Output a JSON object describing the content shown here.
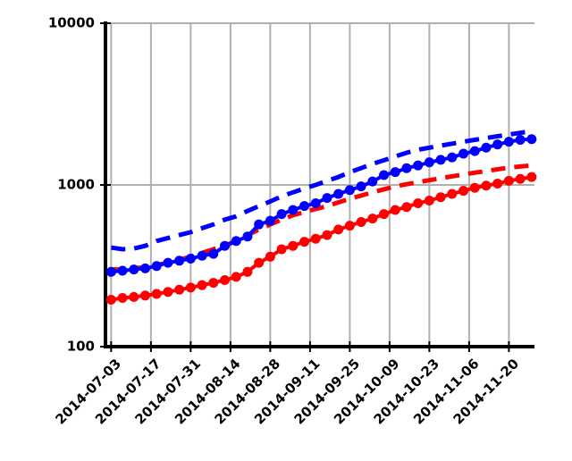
{
  "chart_data": {
    "type": "line",
    "log_scale_y": true,
    "grid": true,
    "x": [
      "2014-07-03",
      "2014-07-07",
      "2014-07-11",
      "2014-07-15",
      "2014-07-19",
      "2014-07-23",
      "2014-07-27",
      "2014-07-31",
      "2014-08-04",
      "2014-08-08",
      "2014-08-12",
      "2014-08-16",
      "2014-08-20",
      "2014-08-24",
      "2014-08-28",
      "2014-09-01",
      "2014-09-05",
      "2014-09-09",
      "2014-09-13",
      "2014-09-17",
      "2014-09-21",
      "2014-09-25",
      "2014-09-29",
      "2014-10-03",
      "2014-10-07",
      "2014-10-11",
      "2014-10-15",
      "2014-10-19",
      "2014-10-23",
      "2014-10-27",
      "2014-10-31",
      "2014-11-04",
      "2014-11-08",
      "2014-11-12",
      "2014-11-16",
      "2014-11-20",
      "2014-11-24",
      "2014-11-28"
    ],
    "series": [
      {
        "color": "#ff0000",
        "dashed": true,
        "markers": false,
        "values": [
          300,
          300,
          305,
          310,
          320,
          330,
          345,
          360,
          380,
          400,
          420,
          450,
          490,
          530,
          570,
          610,
          650,
          680,
          710,
          740,
          780,
          820,
          860,
          900,
          940,
          980,
          1010,
          1040,
          1070,
          1100,
          1130,
          1160,
          1190,
          1220,
          1250,
          1280,
          1300,
          1320
        ]
      },
      {
        "color": "#0000ff",
        "dashed": true,
        "markers": false,
        "values": [
          410,
          400,
          405,
          420,
          450,
          470,
          490,
          510,
          540,
          570,
          610,
          640,
          690,
          740,
          790,
          850,
          900,
          950,
          1000,
          1060,
          1120,
          1200,
          1270,
          1350,
          1420,
          1500,
          1580,
          1650,
          1700,
          1750,
          1800,
          1850,
          1900,
          1950,
          2000,
          2050,
          2100,
          2150
        ]
      },
      {
        "color": "#ff0000",
        "dashed": false,
        "markers": true,
        "values": [
          195,
          200,
          203,
          207,
          212,
          218,
          225,
          232,
          240,
          248,
          258,
          270,
          290,
          330,
          360,
          400,
          420,
          445,
          465,
          490,
          530,
          560,
          590,
          620,
          660,
          700,
          730,
          770,
          800,
          840,
          880,
          920,
          960,
          990,
          1020,
          1060,
          1090,
          1120
        ]
      },
      {
        "color": "#0000ff",
        "dashed": false,
        "markers": true,
        "values": [
          290,
          295,
          300,
          305,
          315,
          330,
          340,
          350,
          365,
          375,
          420,
          450,
          480,
          570,
          600,
          660,
          700,
          740,
          770,
          830,
          880,
          930,
          980,
          1050,
          1150,
          1200,
          1270,
          1320,
          1380,
          1430,
          1480,
          1560,
          1620,
          1700,
          1780,
          1850,
          1900,
          1920
        ]
      }
    ],
    "xlim": [
      "2014-07-01",
      "2014-11-29"
    ],
    "xticks": [
      "2014-07-03",
      "2014-07-17",
      "2014-07-31",
      "2014-08-14",
      "2014-08-28",
      "2014-09-11",
      "2014-09-25",
      "2014-10-09",
      "2014-10-23",
      "2014-11-06",
      "2014-11-20"
    ],
    "ylim": [
      100,
      10000
    ],
    "yticks": [
      100,
      1000,
      10000
    ]
  }
}
